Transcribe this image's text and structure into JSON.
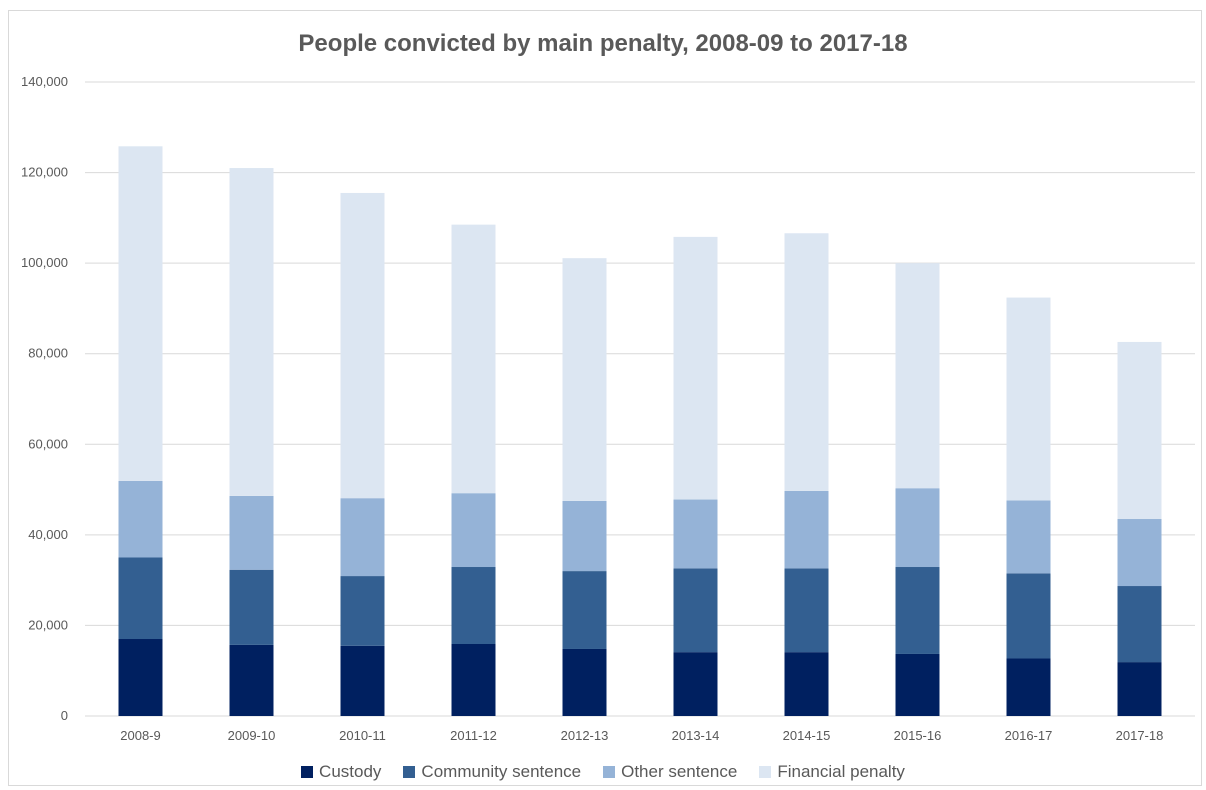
{
  "chart_data": {
    "type": "bar",
    "stacked": true,
    "title": "People convicted by main penalty, 2008-09 to 2017-18",
    "xlabel": "",
    "ylabel": "",
    "ylim": [
      0,
      140000
    ],
    "yticks": [
      0,
      20000,
      40000,
      60000,
      80000,
      100000,
      120000,
      140000
    ],
    "ytick_labels": [
      "0",
      "20,000",
      "40,000",
      "60,000",
      "80,000",
      "100,000",
      "120,000",
      "140,000"
    ],
    "grid": true,
    "legend_position": "bottom",
    "categories": [
      "2008-9",
      "2009-10",
      "2010-11",
      "2011-12",
      "2012-13",
      "2013-14",
      "2014-15",
      "2015-16",
      "2016-17",
      "2017-18"
    ],
    "series": [
      {
        "name": "Custody",
        "color": "#002060",
        "values": [
          17000,
          15700,
          15500,
          15900,
          14800,
          14100,
          14100,
          13700,
          12700,
          11900
        ]
      },
      {
        "name": "Community sentence",
        "color": "#335f91",
        "values": [
          18000,
          16600,
          15400,
          17000,
          17200,
          18500,
          18500,
          19200,
          18800,
          16800
        ]
      },
      {
        "name": "Other sentence",
        "color": "#95b3d7",
        "values": [
          16900,
          16300,
          17200,
          16300,
          15500,
          15200,
          17100,
          17400,
          16100,
          14800
        ]
      },
      {
        "name": "Financial penalty",
        "color": "#dce6f2",
        "values": [
          73900,
          72400,
          67400,
          59300,
          53600,
          58000,
          56900,
          49700,
          44800,
          39100
        ]
      }
    ]
  }
}
